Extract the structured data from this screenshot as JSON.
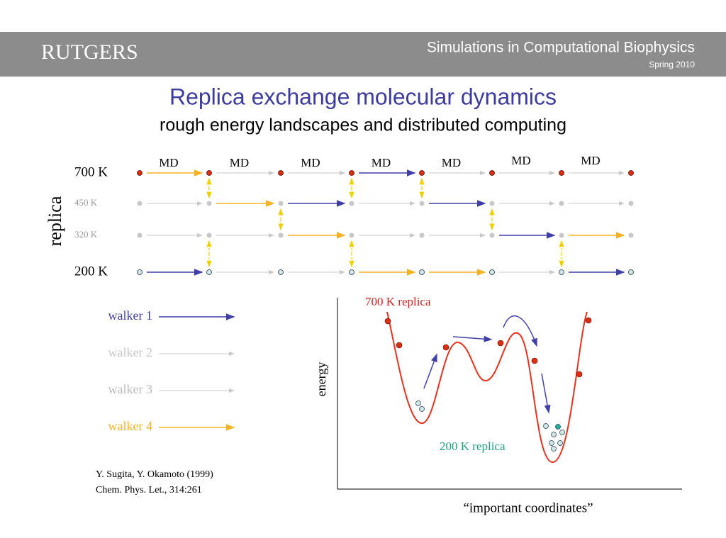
{
  "header": {
    "logo": "RUTGERS",
    "course": "Simulations in Computational Biophysics",
    "term": "Spring 2010"
  },
  "title": "Replica exchange molecular dynamics",
  "subtitle": "rough energy landscapes and distributed computing",
  "diagram": {
    "axis_label": "replica",
    "temperatures": [
      "700 K",
      "450 K",
      "320 K",
      "200 K"
    ],
    "step_labels": [
      "MD",
      "MD",
      "MD",
      "MD",
      "MD",
      "MD",
      "MD"
    ]
  },
  "legend": [
    "walker 1",
    "walker 2",
    "walker 3",
    "walker 4"
  ],
  "citation": [
    "Y. Sugita, Y. Okamoto (1999)",
    "Chem. Phys. Let., 314:261"
  ],
  "plot": {
    "high_label": "700 K replica",
    "low_label": "200 K replica",
    "y_label": "energy",
    "x_label": "“important coordinates”"
  }
}
